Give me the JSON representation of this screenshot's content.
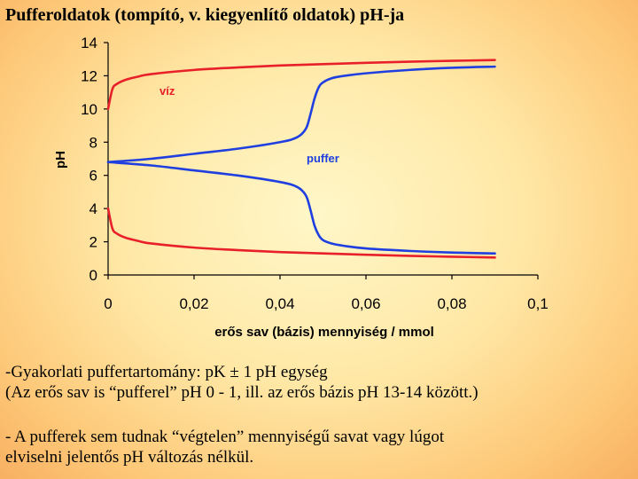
{
  "title": "Pufferoldatok (tompító, v. kiegyenlítő oldatok) pH-ja",
  "notes": {
    "line1": "-Gyakorlati puffertartomány: pK ± 1 pH egység",
    "line2": "(Az erős sav is “pufferel” pH 0 - 1, ill. az erős bázis pH 13-14 között.)",
    "line3": "- A pufferek sem tudnak “végtelen” mennyiségű savat vagy lúgot",
    "line4": "elviselni jelentős pH változás nélkül."
  },
  "chart_data": {
    "type": "line",
    "xlabel": "erős sav (bázis) mennyiség / mmol",
    "ylabel": "pH",
    "xlim": [
      0,
      0.1
    ],
    "ylim": [
      0,
      14
    ],
    "xticks": [
      "0",
      "0,02",
      "0,04",
      "0,06",
      "0,08",
      "0,1"
    ],
    "yticks": [
      "0",
      "2",
      "4",
      "6",
      "8",
      "10",
      "12",
      "14"
    ],
    "grid": false,
    "series": [
      {
        "name": "víz",
        "color": "#e8202a",
        "label_color": "#e8202a",
        "x": [
          0.0,
          0.001,
          0.002,
          0.004,
          0.007,
          0.01,
          0.02,
          0.03,
          0.04,
          0.05,
          0.06,
          0.07,
          0.08,
          0.09
        ],
        "y": [
          10.0,
          11.2,
          11.5,
          11.75,
          11.95,
          12.1,
          12.35,
          12.5,
          12.62,
          12.7,
          12.78,
          12.85,
          12.9,
          12.95
        ]
      },
      {
        "name": "",
        "color": "#e8202a",
        "x": [
          0.0,
          0.001,
          0.002,
          0.004,
          0.007,
          0.01,
          0.02,
          0.03,
          0.04,
          0.05,
          0.06,
          0.07,
          0.08,
          0.09
        ],
        "y": [
          4.0,
          2.8,
          2.5,
          2.25,
          2.05,
          1.9,
          1.65,
          1.5,
          1.38,
          1.3,
          1.22,
          1.15,
          1.1,
          1.05
        ]
      },
      {
        "name": "puffer",
        "color": "#1f3fe0",
        "label_color": "#1f3fe0",
        "x": [
          0.0,
          0.01,
          0.02,
          0.03,
          0.04,
          0.044,
          0.046,
          0.047,
          0.048,
          0.049,
          0.05,
          0.052,
          0.055,
          0.06,
          0.07,
          0.08,
          0.09
        ],
        "y": [
          6.8,
          7.0,
          7.3,
          7.6,
          8.0,
          8.3,
          8.8,
          9.6,
          10.6,
          11.3,
          11.6,
          11.85,
          12.0,
          12.15,
          12.35,
          12.48,
          12.55
        ]
      },
      {
        "name": "",
        "color": "#1f3fe0",
        "x": [
          0.0,
          0.01,
          0.02,
          0.03,
          0.04,
          0.044,
          0.046,
          0.047,
          0.048,
          0.049,
          0.05,
          0.052,
          0.055,
          0.06,
          0.07,
          0.08,
          0.09
        ],
        "y": [
          6.8,
          6.6,
          6.3,
          6.0,
          5.6,
          5.3,
          4.8,
          4.0,
          3.0,
          2.4,
          2.1,
          1.9,
          1.75,
          1.6,
          1.45,
          1.35,
          1.3
        ]
      }
    ]
  }
}
